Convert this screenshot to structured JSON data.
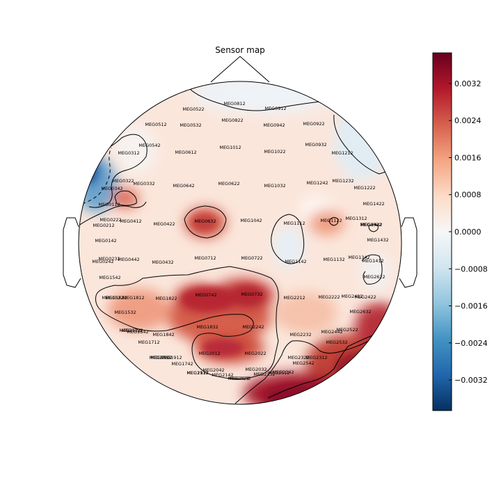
{
  "title": "Sensor map",
  "colorbar": {
    "ticks": [
      {
        "value": 0.0032,
        "label": "0.0032"
      },
      {
        "value": 0.0024,
        "label": "0.0024"
      },
      {
        "value": 0.0016,
        "label": "0.0016"
      },
      {
        "value": 0.0008,
        "label": "0.0008"
      },
      {
        "value": 0.0,
        "label": "0.0000"
      },
      {
        "value": -0.0008,
        "label": "−0.0008"
      },
      {
        "value": -0.0016,
        "label": "−0.0016"
      },
      {
        "value": -0.0024,
        "label": "−0.0024"
      },
      {
        "value": -0.0032,
        "label": "−0.0032"
      }
    ],
    "range": [
      -0.00386,
      0.00386
    ],
    "colormap": "RdBu_r",
    "colors": {
      "max": "#67001f",
      "mid": "#f7f7f7",
      "min": "#053061"
    }
  },
  "sensors": [
    "MEG0522",
    "MEG0812",
    "MEG0912",
    "MEG0512",
    "MEG0532",
    "MEG0822",
    "MEG0942",
    "MEG0922",
    "MEG0542",
    "MEG0612",
    "MEG1012",
    "MEG1022",
    "MEG0932",
    "MEG1212",
    "MEG0312",
    "MEG0322",
    "MEG0332",
    "MEG0642",
    "MEG0622",
    "MEG1032",
    "MEG1242",
    "MEG1232",
    "MEG0342",
    "MEG1222",
    "MEG0112",
    "MEG1422",
    "MEG0222",
    "MEG0412",
    "MEG0422",
    "MEG0632",
    "MEG1042",
    "MEG1112",
    "MEG1122",
    "MEG1312",
    "MEG0212",
    "MEG1322",
    "MEG1442",
    "MEG0142",
    "MEG1432",
    "MEG0232",
    "MEG0442",
    "MEG0712",
    "MEG0722",
    "MEG0432",
    "MEG1142",
    "MEG1132",
    "MEG1342",
    "MEG0242",
    "MEG1412",
    "MEG1542",
    "MEG2622",
    "MEG1522",
    "MEG1822",
    "MEG1812",
    "MEG0742",
    "MEG0732",
    "MEG1612",
    "MEG2212",
    "MEG2222",
    "MEG2412",
    "MEG2422",
    "MEG1532",
    "MEG2632",
    "MEG1832",
    "MEG2242",
    "MEG1622",
    "MEG1642",
    "MEG1842",
    "MEG2232",
    "MEG2442",
    "MEG2522",
    "MEG1712",
    "MEG2532",
    "MEG2012",
    "MEG2022",
    "MEG1922",
    "MEG1912",
    "MEG2322",
    "MEG2312",
    "MEG1742",
    "MEG2542",
    "MEG2042",
    "MEG2032",
    "MEG1932",
    "MEG2142",
    "MEG2332",
    "MEG2512",
    "MEG2122",
    "MEG2132",
    "MEG2112",
    "MEG1732",
    "MEG2342",
    "MEG1722"
  ]
}
